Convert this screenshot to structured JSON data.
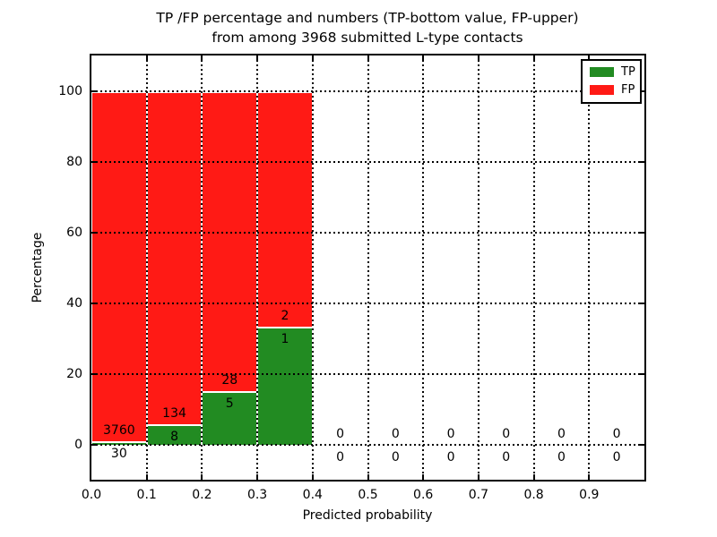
{
  "chart_data": {
    "type": "bar",
    "variant": "stacked-percentage-histogram",
    "title_line1": "TP /FP percentage and numbers (TP-bottom value, FP-upper)",
    "title_line2": "from among 3968 submitted L-type contacts",
    "xlabel": "Predicted probability",
    "ylabel": "Percentage",
    "xlim": [
      0.0,
      1.0
    ],
    "ylim": [
      -10,
      110
    ],
    "grid": true,
    "total_contacts": 3968,
    "x_ticks": [
      {
        "v": 0.0,
        "label": "0.0"
      },
      {
        "v": 0.1,
        "label": "0.1"
      },
      {
        "v": 0.2,
        "label": "0.2"
      },
      {
        "v": 0.3,
        "label": "0.3"
      },
      {
        "v": 0.4,
        "label": "0.4"
      },
      {
        "v": 0.5,
        "label": "0.5"
      },
      {
        "v": 0.6,
        "label": "0.6"
      },
      {
        "v": 0.7,
        "label": "0.7"
      },
      {
        "v": 0.8,
        "label": "0.8"
      },
      {
        "v": 0.9,
        "label": "0.9"
      }
    ],
    "y_ticks": [
      {
        "v": 0,
        "label": "0"
      },
      {
        "v": 20,
        "label": "20"
      },
      {
        "v": 40,
        "label": "40"
      },
      {
        "v": 60,
        "label": "60"
      },
      {
        "v": 80,
        "label": "80"
      },
      {
        "v": 100,
        "label": "100"
      }
    ],
    "legend": {
      "position": "upper right",
      "entries": [
        {
          "name": "TP",
          "color": "#228b22"
        },
        {
          "name": "FP",
          "color": "#ff1a15"
        }
      ]
    },
    "bins": [
      {
        "range": [
          0.0,
          0.1
        ],
        "tp": 30,
        "fp": 3760
      },
      {
        "range": [
          0.1,
          0.2
        ],
        "tp": 8,
        "fp": 134
      },
      {
        "range": [
          0.2,
          0.3
        ],
        "tp": 5,
        "fp": 28
      },
      {
        "range": [
          0.3,
          0.4
        ],
        "tp": 1,
        "fp": 2
      },
      {
        "range": [
          0.4,
          0.5
        ],
        "tp": 0,
        "fp": 0
      },
      {
        "range": [
          0.5,
          0.6
        ],
        "tp": 0,
        "fp": 0
      },
      {
        "range": [
          0.6,
          0.7
        ],
        "tp": 0,
        "fp": 0
      },
      {
        "range": [
          0.7,
          0.8
        ],
        "tp": 0,
        "fp": 0
      },
      {
        "range": [
          0.8,
          0.9
        ],
        "tp": 0,
        "fp": 0
      },
      {
        "range": [
          0.9,
          1.0
        ],
        "tp": 0,
        "fp": 0
      }
    ]
  }
}
